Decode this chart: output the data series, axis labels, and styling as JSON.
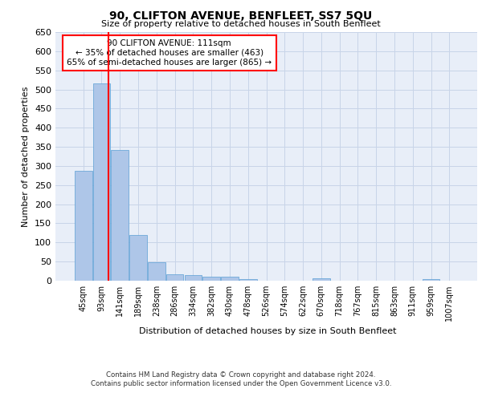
{
  "title": "90, CLIFTON AVENUE, BENFLEET, SS7 5QU",
  "subtitle": "Size of property relative to detached houses in South Benfleet",
  "xlabel": "Distribution of detached houses by size in South Benfleet",
  "ylabel": "Number of detached properties",
  "bin_labels": [
    "45sqm",
    "93sqm",
    "141sqm",
    "189sqm",
    "238sqm",
    "286sqm",
    "334sqm",
    "382sqm",
    "430sqm",
    "478sqm",
    "526sqm",
    "574sqm",
    "622sqm",
    "670sqm",
    "718sqm",
    "767sqm",
    "815sqm",
    "863sqm",
    "911sqm",
    "959sqm",
    "1007sqm"
  ],
  "bar_heights": [
    287,
    516,
    341,
    119,
    48,
    16,
    14,
    10,
    10,
    5,
    0,
    0,
    0,
    7,
    0,
    0,
    0,
    0,
    0,
    5,
    0
  ],
  "bar_color": "#aec6e8",
  "bar_edge_color": "#5a9fd4",
  "vline_color": "red",
  "vline_x": 1.0,
  "annotation_text": "90 CLIFTON AVENUE: 111sqm\n← 35% of detached houses are smaller (463)\n65% of semi-detached houses are larger (865) →",
  "annotation_box_color": "white",
  "annotation_box_edge": "red",
  "ylim": [
    0,
    650
  ],
  "yticks": [
    0,
    50,
    100,
    150,
    200,
    250,
    300,
    350,
    400,
    450,
    500,
    550,
    600,
    650
  ],
  "grid_color": "#c8d4e8",
  "background_color": "#e8eef8",
  "footer_line1": "Contains HM Land Registry data © Crown copyright and database right 2024.",
  "footer_line2": "Contains public sector information licensed under the Open Government Licence v3.0."
}
